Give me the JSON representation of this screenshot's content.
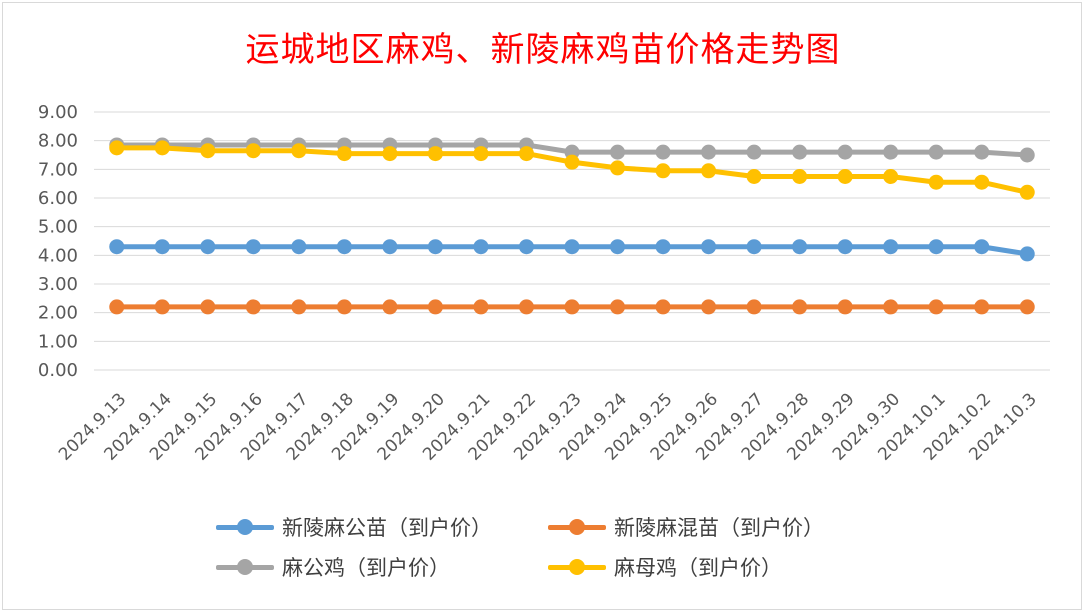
{
  "chart_data": {
    "type": "line",
    "title": "运城地区麻鸡、新陵麻鸡苗价格走势图",
    "xlabel": "",
    "ylabel": "",
    "ylim": [
      0,
      9
    ],
    "y_ticks": [
      "0.00",
      "1.00",
      "2.00",
      "3.00",
      "4.00",
      "5.00",
      "6.00",
      "7.00",
      "8.00",
      "9.00"
    ],
    "grid": true,
    "legend_position": "bottom",
    "categories": [
      "2024.9.13",
      "2024.9.14",
      "2024.9.15",
      "2024.9.16",
      "2024.9.17",
      "2024.9.18",
      "2024.9.19",
      "2024.9.20",
      "2024.9.21",
      "2024.9.22",
      "2024.9.23",
      "2024.9.24",
      "2024.9.25",
      "2024.9.26",
      "2024.9.27",
      "2024.9.28",
      "2024.9.29",
      "2024.9.30",
      "2024.10.1",
      "2024.10.2",
      "2024.10.3"
    ],
    "series": [
      {
        "name": "新陵麻公苗（到户价）",
        "color": "#5b9bd5",
        "values": [
          4.3,
          4.3,
          4.3,
          4.3,
          4.3,
          4.3,
          4.3,
          4.3,
          4.3,
          4.3,
          4.3,
          4.3,
          4.3,
          4.3,
          4.3,
          4.3,
          4.3,
          4.3,
          4.3,
          4.3,
          4.05
        ]
      },
      {
        "name": "新陵麻混苗（到户价）",
        "color": "#ed7d31",
        "values": [
          2.2,
          2.2,
          2.2,
          2.2,
          2.2,
          2.2,
          2.2,
          2.2,
          2.2,
          2.2,
          2.2,
          2.2,
          2.2,
          2.2,
          2.2,
          2.2,
          2.2,
          2.2,
          2.2,
          2.2,
          2.2
        ]
      },
      {
        "name": "麻公鸡（到户价）",
        "color": "#a5a5a5",
        "values": [
          7.85,
          7.85,
          7.85,
          7.85,
          7.85,
          7.85,
          7.85,
          7.85,
          7.85,
          7.85,
          7.6,
          7.6,
          7.6,
          7.6,
          7.6,
          7.6,
          7.6,
          7.6,
          7.6,
          7.6,
          7.5
        ]
      },
      {
        "name": "麻母鸡（到户价）",
        "color": "#ffc000",
        "values": [
          7.75,
          7.75,
          7.65,
          7.65,
          7.65,
          7.55,
          7.55,
          7.55,
          7.55,
          7.55,
          7.25,
          7.05,
          6.95,
          6.95,
          6.75,
          6.75,
          6.75,
          6.75,
          6.55,
          6.55,
          6.2
        ]
      }
    ]
  }
}
